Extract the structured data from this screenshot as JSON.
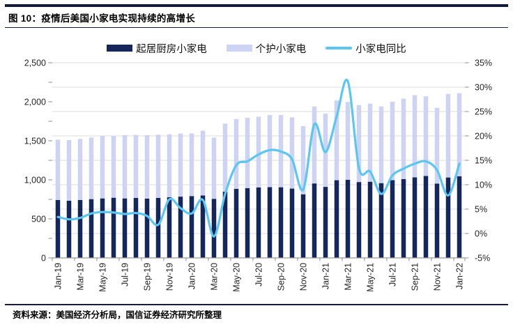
{
  "page": {
    "title": "图 10：疫情后美国小家电实现持续的高增长",
    "source": "资料来源：美国经济分析局，国信证券经济研究所整理"
  },
  "colors": {
    "bar_kitchen": "#15265B",
    "bar_personal": "#CDD3F2",
    "line_yoy": "#5BC6F0",
    "grid": "#DCDCDC",
    "axis": "#999999",
    "tick": "#8C8C8C",
    "axis_text": "#262626",
    "rule": "#141A38"
  },
  "legend": [
    {
      "label": "起居厨房小家电",
      "type": "bar",
      "color": "#15265B"
    },
    {
      "label": "个护小家电",
      "type": "bar",
      "color": "#CDD3F2"
    },
    {
      "label": "小家电同比",
      "type": "line",
      "color": "#5BC6F0"
    }
  ],
  "chart_data": {
    "type": "combo-stacked-bar-line",
    "categories": [
      "Jan-19",
      "Feb-19",
      "Mar-19",
      "Apr-19",
      "May-19",
      "Jun-19",
      "Jul-19",
      "Aug-19",
      "Sep-19",
      "Oct-19",
      "Nov-19",
      "Dec-19",
      "Jan-20",
      "Feb-20",
      "Mar-20",
      "Apr-20",
      "May-20",
      "Jun-20",
      "Jul-20",
      "Aug-20",
      "Sep-20",
      "Oct-20",
      "Nov-20",
      "Dec-20",
      "Jan-21",
      "Feb-21",
      "Mar-21",
      "Apr-21",
      "May-21",
      "Jun-21",
      "Jul-21",
      "Aug-21",
      "Sep-21",
      "Oct-21",
      "Nov-21",
      "Dec-21",
      "Jan-22"
    ],
    "x_tick_labels": [
      "Jan-19",
      "Mar-19",
      "May-19",
      "Jul-19",
      "Sep-19",
      "Nov-19",
      "Jan-20",
      "Mar-20",
      "May-20",
      "Jul-20",
      "Sep-20",
      "Nov-20",
      "Jan-21",
      "Mar-21",
      "May-21",
      "Jul-21",
      "Sep-21",
      "Nov-21",
      "Jan-22"
    ],
    "series": [
      {
        "name": "起居厨房小家电",
        "type": "bar",
        "stack": "total",
        "axis": "left",
        "color": "#15265B",
        "values": [
          742,
          733,
          742,
          753,
          762,
          771,
          762,
          768,
          760,
          768,
          777,
          785,
          792,
          800,
          757,
          848,
          885,
          894,
          903,
          906,
          905,
          888,
          815,
          954,
          910,
          995,
          1000,
          972,
          976,
          958,
          996,
          1010,
          1032,
          1050,
          952,
          1030,
          1046
        ]
      },
      {
        "name": "个护小家电",
        "type": "bar",
        "stack": "total",
        "axis": "left",
        "color": "#CDD3F2",
        "values": [
          773,
          776,
          782,
          789,
          801,
          793,
          810,
          807,
          812,
          810,
          807,
          809,
          803,
          830,
          784,
          872,
          894,
          900,
          906,
          924,
          925,
          912,
          872,
          986,
          938,
          1022,
          997,
          986,
          1000,
          982,
          1004,
          1030,
          1053,
          1020,
          970,
          1070,
          1064
        ]
      },
      {
        "name": "小家电同比",
        "type": "line",
        "axis": "right",
        "unit": "%",
        "color": "#5BC6F0",
        "values": [
          3.4,
          2.9,
          3.2,
          4.1,
          4.4,
          4.3,
          4.0,
          4.2,
          3.6,
          1.8,
          7.0,
          5.2,
          4.1,
          6.9,
          -0.6,
          8.1,
          14.0,
          14.8,
          16.2,
          17.1,
          16.8,
          15.2,
          9.0,
          22.4,
          16.7,
          24.0,
          31.2,
          13.4,
          12.7,
          8.1,
          11.9,
          13.3,
          14.3,
          14.8,
          13.0,
          7.8,
          14.3
        ]
      }
    ],
    "left_axis": {
      "min": 0,
      "max": 2500,
      "ticks": [
        "0",
        "500",
        "1,000",
        "1,500",
        "2,000",
        "2,500"
      ]
    },
    "right_axis": {
      "min": -5,
      "max": 35,
      "ticks": [
        "-5%",
        "0%",
        "5%",
        "10%",
        "15%",
        "20%",
        "25%",
        "30%",
        "35%"
      ]
    },
    "grid": "horizontal",
    "legend_position": "top"
  }
}
